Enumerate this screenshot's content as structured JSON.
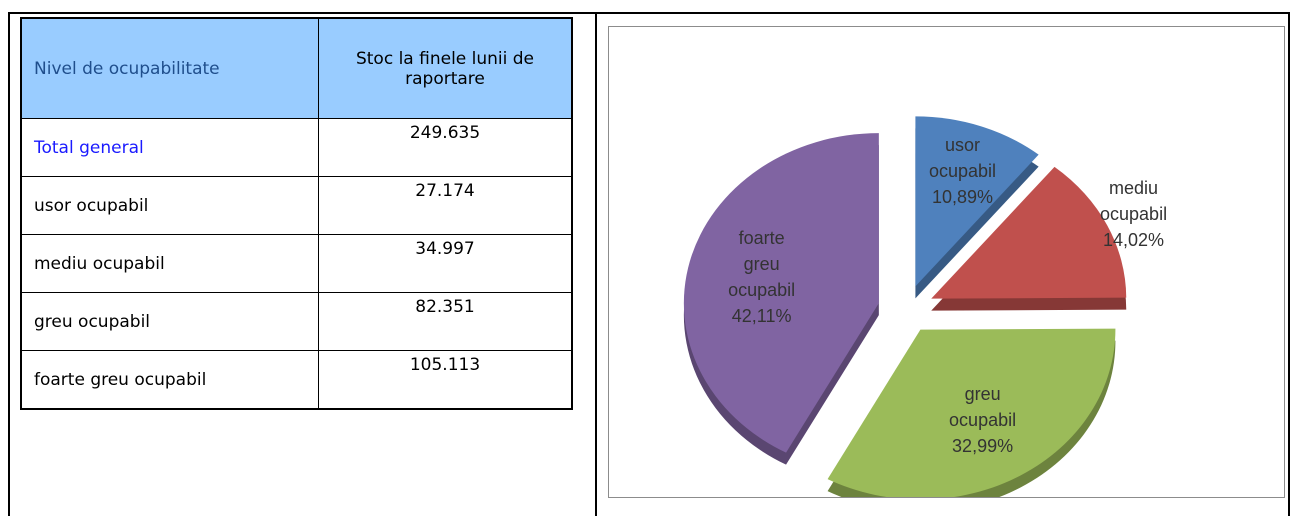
{
  "table": {
    "header": [
      "Nivel de ocupabilitate",
      "Stoc la finele lunii de raportare"
    ],
    "rows": [
      [
        "Total general",
        "249.635"
      ],
      [
        "usor ocupabil",
        "27.174"
      ],
      [
        "mediu ocupabil",
        "34.997"
      ],
      [
        "greu ocupabil",
        "82.351"
      ],
      [
        "foarte greu ocupabil",
        "105.113"
      ]
    ]
  },
  "chart_data": {
    "type": "pie",
    "categories": [
      "usor ocupabil",
      "mediu ocupabil",
      "greu ocupabil",
      "foarte greu ocupabil"
    ],
    "values": [
      10.89,
      14.02,
      32.99,
      42.11
    ],
    "value_labels": [
      "10,89%",
      "14,02%",
      "32,99%",
      "42,11%"
    ],
    "colors": [
      "#4f81bd",
      "#c0504d",
      "#9bbb59",
      "#8064a2"
    ]
  }
}
